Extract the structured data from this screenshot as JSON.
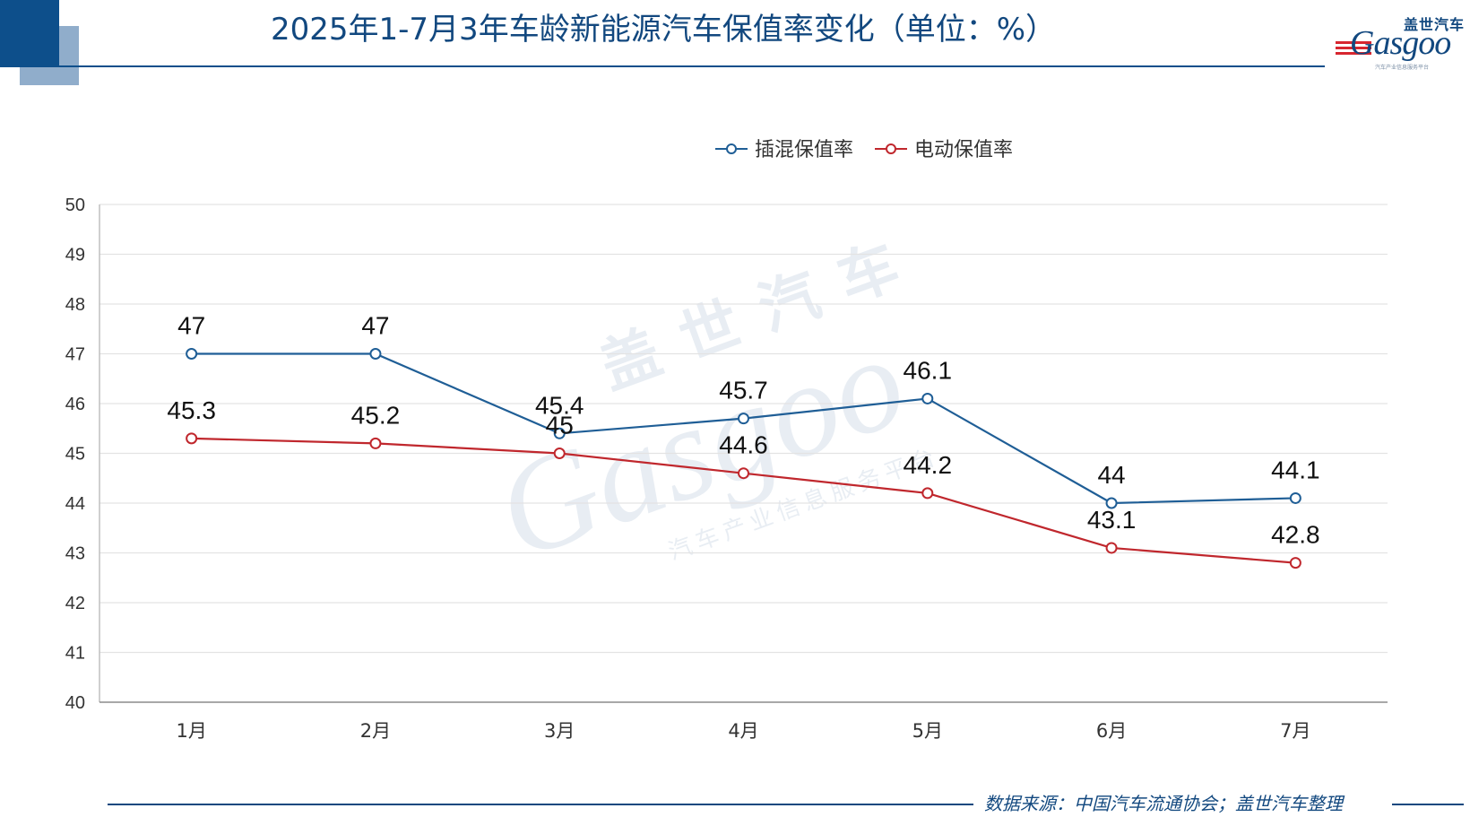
{
  "header": {
    "title": "2025年1-7月3年车龄新能源汽车保值率变化（单位：%）"
  },
  "logo": {
    "cn_name": "盖世汽车",
    "en_name": "Gasgoo",
    "tagline": "汽车产业信息服务平台"
  },
  "watermark": {
    "cn_name": "盖世汽车",
    "en_name": "Gasgoo",
    "tagline": "汽车产业信息服务平台"
  },
  "footer": {
    "source": "数据来源：中国汽车流通协会；盖世汽车整理"
  },
  "colors": {
    "brand": "#12487f",
    "series_phev": "#1f5e96",
    "series_ev": "#c0272d",
    "grid": "#e3e3e3"
  },
  "chart_data": {
    "type": "line",
    "title": "2025年1-7月3年车龄新能源汽车保值率变化（单位：%）",
    "xlabel": "",
    "ylabel": "",
    "categories": [
      "1月",
      "2月",
      "3月",
      "4月",
      "5月",
      "6月",
      "7月"
    ],
    "ylim": [
      40,
      50
    ],
    "yticks": [
      40,
      41,
      42,
      43,
      44,
      45,
      46,
      47,
      48,
      49,
      50
    ],
    "grid": true,
    "legend_position": "top-center",
    "series": [
      {
        "name": "插混保值率",
        "values": [
          47,
          47,
          45.4,
          45.7,
          46.1,
          44,
          44.1
        ],
        "color": "#1f5e96"
      },
      {
        "name": "电动保值率",
        "values": [
          45.3,
          45.2,
          45,
          44.6,
          44.2,
          43.1,
          42.8
        ],
        "color": "#c0272d"
      }
    ]
  }
}
